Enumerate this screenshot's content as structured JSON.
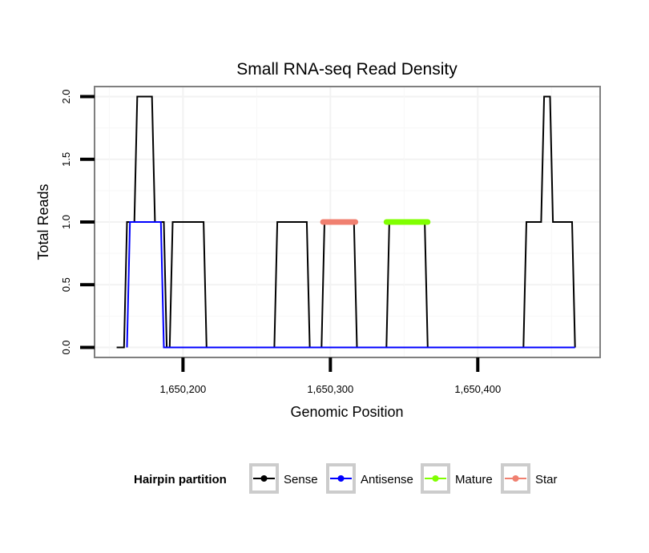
{
  "chart_data": {
    "type": "line",
    "title": "Small RNA-seq Read Density",
    "xlabel": "Genomic Position",
    "ylabel": "Total Reads",
    "xlim": [
      1650140,
      1650483
    ],
    "ylim": [
      -0.08,
      2.08
    ],
    "x_ticks": [
      1650200,
      1650300,
      1650400
    ],
    "x_tick_labels": [
      "1,650,200",
      "1,650,300",
      "1,650,400"
    ],
    "y_ticks": [
      0.0,
      0.5,
      1.0,
      1.5,
      2.0
    ],
    "y_tick_labels": [
      "0.0",
      "0.5",
      "1.0",
      "1.5",
      "2.0"
    ],
    "grid": true,
    "legend": {
      "title": "Hairpin partition",
      "position": "bottom",
      "entries": [
        "Sense",
        "Antisense",
        "Mature",
        "Star"
      ]
    },
    "series": [
      {
        "name": "Sense",
        "color": "#000000",
        "x": [
          1650155,
          1650160,
          1650162,
          1650167,
          1650169,
          1650179,
          1650181,
          1650187,
          1650189,
          1650191,
          1650193,
          1650214,
          1650216,
          1650262,
          1650264,
          1650284,
          1650286,
          1650294,
          1650296,
          1650316,
          1650318,
          1650338,
          1650340,
          1650364,
          1650366,
          1650431,
          1650433,
          1650443,
          1650445,
          1650449,
          1650451,
          1650464,
          1650466
        ],
        "y": [
          0,
          0,
          1,
          1,
          2,
          2,
          1,
          1,
          0,
          0,
          1,
          1,
          0,
          0,
          1,
          1,
          0,
          0,
          1,
          1,
          0,
          0,
          1,
          1,
          0,
          0,
          1,
          1,
          2,
          2,
          1,
          1,
          0
        ]
      },
      {
        "name": "Antisense",
        "color": "#0000ff",
        "x": [
          1650162,
          1650164,
          1650185,
          1650187,
          1650466
        ],
        "y": [
          0,
          1,
          1,
          0,
          0
        ]
      },
      {
        "name": "Mature",
        "color": "#80ff00",
        "x": [
          1650338,
          1650366
        ],
        "y": [
          1,
          1
        ]
      },
      {
        "name": "Star",
        "color": "#f08070",
        "x": [
          1650295,
          1650317
        ],
        "y": [
          1,
          1
        ]
      }
    ]
  }
}
